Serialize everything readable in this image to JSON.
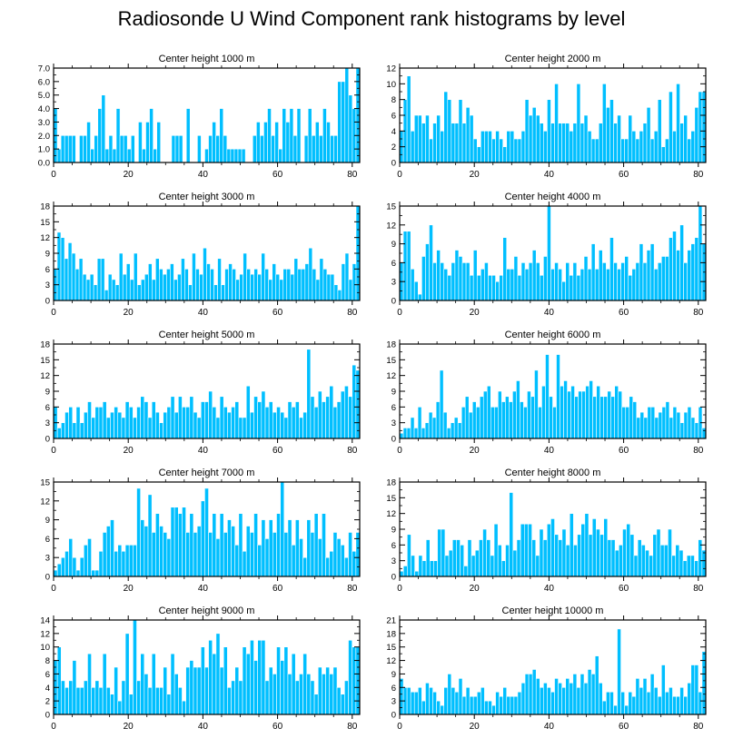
{
  "page": {
    "title": "Radiosonde U Wind Component rank histograms by level",
    "bar_color": "#00BFFF",
    "bar_edge_color": "#ffffff"
  },
  "chart_data": [
    {
      "type": "bar",
      "title": "Center height 1000 m",
      "xlim": [
        0,
        82
      ],
      "ylim": [
        0,
        7
      ],
      "yticks": [
        0,
        1,
        2,
        3,
        4,
        5,
        6,
        7
      ],
      "ytick_labels": [
        "0.0",
        "1.0",
        "2.0",
        "3.0",
        "4.0",
        "5.0",
        "6.0",
        "7.0"
      ],
      "xticks": [
        0,
        20,
        40,
        60,
        80
      ],
      "values": [
        4,
        1,
        2,
        2,
        2,
        2,
        0,
        2,
        2,
        3,
        1,
        2,
        4,
        5,
        1,
        2,
        1,
        4,
        2,
        2,
        1,
        2,
        0,
        3,
        1,
        3,
        4,
        1,
        3,
        0,
        0,
        0,
        2,
        2,
        2,
        0,
        4,
        0,
        0,
        2,
        0,
        1,
        2,
        3,
        2,
        4,
        2,
        1,
        1,
        1,
        1,
        1,
        0,
        0,
        2,
        3,
        2,
        3,
        4,
        2,
        3,
        1,
        4,
        3,
        4,
        2,
        4,
        0,
        2,
        4,
        2,
        3,
        2,
        4,
        3,
        2,
        2,
        6,
        6,
        7,
        5,
        4,
        7
      ]
    },
    {
      "type": "bar",
      "title": "Center height 2000 m",
      "xlim": [
        0,
        82
      ],
      "ylim": [
        0,
        12
      ],
      "yticks": [
        0,
        2,
        4,
        6,
        8,
        10,
        12
      ],
      "ytick_labels": [
        "0",
        "2",
        "4",
        "6",
        "8",
        "10",
        "12"
      ],
      "xticks": [
        0,
        20,
        40,
        60,
        80
      ],
      "values": [
        4,
        8,
        11,
        4,
        6,
        6,
        5,
        6,
        3,
        5,
        6,
        4,
        9,
        8,
        5,
        5,
        8,
        5,
        7,
        6,
        3,
        2,
        4,
        4,
        4,
        3,
        4,
        3,
        2,
        4,
        4,
        3,
        3,
        4,
        8,
        6,
        7,
        6,
        5,
        4,
        8,
        5,
        10,
        5,
        5,
        5,
        4,
        5,
        10,
        5,
        6,
        4,
        3,
        3,
        5,
        10,
        7,
        8,
        5,
        6,
        3,
        3,
        6,
        4,
        3,
        4,
        5,
        7,
        3,
        4,
        8,
        2,
        3,
        9,
        4,
        10,
        5,
        6,
        3,
        4,
        7,
        9,
        9
      ]
    },
    {
      "type": "bar",
      "title": "Center height 3000 m",
      "xlim": [
        0,
        82
      ],
      "ylim": [
        0,
        18
      ],
      "yticks": [
        0,
        3,
        6,
        9,
        12,
        15,
        18
      ],
      "ytick_labels": [
        "0",
        "3",
        "6",
        "9",
        "12",
        "15",
        "18"
      ],
      "xticks": [
        0,
        20,
        40,
        60,
        80
      ],
      "values": [
        6,
        13,
        12,
        8,
        11,
        9,
        6,
        8,
        5,
        4,
        5,
        3,
        8,
        8,
        2,
        5,
        4,
        3,
        9,
        5,
        7,
        4,
        9,
        3,
        4,
        5,
        7,
        4,
        8,
        6,
        5,
        6,
        7,
        4,
        5,
        8,
        6,
        3,
        9,
        6,
        5,
        10,
        7,
        6,
        3,
        8,
        3,
        6,
        7,
        6,
        4,
        5,
        9,
        6,
        5,
        6,
        5,
        9,
        6,
        4,
        7,
        5,
        4,
        6,
        6,
        5,
        8,
        6,
        6,
        7,
        10,
        6,
        4,
        8,
        6,
        5,
        5,
        3,
        2,
        7,
        9,
        4,
        7,
        18
      ]
    },
    {
      "type": "bar",
      "title": "Center height 4000 m",
      "xlim": [
        0,
        82
      ],
      "ylim": [
        0,
        15
      ],
      "yticks": [
        0,
        3,
        6,
        9,
        12,
        15
      ],
      "ytick_labels": [
        "0",
        "3",
        "6",
        "9",
        "12",
        "15"
      ],
      "xticks": [
        0,
        20,
        40,
        60,
        80
      ],
      "values": [
        6,
        11,
        11,
        5,
        3,
        1,
        7,
        9,
        12,
        6,
        8,
        6,
        5,
        4,
        6,
        8,
        7,
        6,
        6,
        4,
        8,
        4,
        5,
        6,
        4,
        4,
        3,
        4,
        10,
        5,
        5,
        7,
        4,
        6,
        5,
        6,
        8,
        6,
        4,
        7,
        15,
        5,
        6,
        5,
        3,
        6,
        4,
        6,
        4,
        5,
        7,
        5,
        9,
        5,
        8,
        6,
        5,
        10,
        6,
        5,
        6,
        7,
        4,
        5,
        6,
        9,
        6,
        8,
        9,
        5,
        6,
        7,
        7,
        10,
        11,
        8,
        12,
        6,
        8,
        9,
        10,
        15,
        9
      ]
    },
    {
      "type": "bar",
      "title": "Center height 5000 m",
      "xlim": [
        0,
        82
      ],
      "ylim": [
        0,
        18
      ],
      "yticks": [
        0,
        3,
        6,
        9,
        12,
        15,
        18
      ],
      "ytick_labels": [
        "0",
        "3",
        "6",
        "9",
        "12",
        "15",
        "18"
      ],
      "xticks": [
        0,
        20,
        40,
        60,
        80
      ],
      "values": [
        6,
        2,
        3,
        5,
        6,
        3,
        6,
        3,
        5,
        7,
        4,
        6,
        6,
        7,
        4,
        5,
        6,
        5,
        4,
        7,
        6,
        4,
        6,
        8,
        7,
        4,
        7,
        5,
        3,
        5,
        6,
        8,
        5,
        8,
        6,
        6,
        8,
        5,
        4,
        7,
        7,
        9,
        6,
        4,
        8,
        6,
        5,
        6,
        7,
        4,
        4,
        10,
        5,
        8,
        7,
        9,
        6,
        7,
        5,
        6,
        5,
        4,
        7,
        6,
        7,
        4,
        5,
        17,
        8,
        6,
        9,
        7,
        8,
        10,
        6,
        7,
        9,
        10,
        8,
        14,
        13
      ]
    },
    {
      "type": "bar",
      "title": "Center height 6000 m",
      "xlim": [
        0,
        82
      ],
      "ylim": [
        0,
        18
      ],
      "yticks": [
        0,
        3,
        6,
        9,
        12,
        15,
        18
      ],
      "ytick_labels": [
        "0",
        "3",
        "6",
        "9",
        "12",
        "15",
        "18"
      ],
      "xticks": [
        0,
        20,
        40,
        60,
        80
      ],
      "values": [
        1,
        2,
        2,
        4,
        2,
        6,
        2,
        3,
        5,
        4,
        7,
        13,
        5,
        2,
        3,
        4,
        3,
        6,
        8,
        5,
        7,
        6,
        8,
        9,
        10,
        6,
        6,
        9,
        7,
        8,
        7,
        9,
        11,
        7,
        6,
        9,
        8,
        13,
        6,
        10,
        16,
        8,
        6,
        16,
        10,
        11,
        9,
        10,
        8,
        9,
        9,
        10,
        11,
        8,
        10,
        8,
        8,
        9,
        8,
        10,
        9,
        6,
        6,
        8,
        7,
        4,
        5,
        4,
        6,
        6,
        4,
        5,
        6,
        7,
        4,
        6,
        5,
        3,
        5,
        6,
        4,
        3,
        6,
        2
      ]
    },
    {
      "type": "bar",
      "title": "Center height 7000 m",
      "xlim": [
        0,
        82
      ],
      "ylim": [
        0,
        15
      ],
      "yticks": [
        0,
        3,
        6,
        9,
        12,
        15
      ],
      "ytick_labels": [
        "0",
        "3",
        "6",
        "9",
        "12",
        "15"
      ],
      "xticks": [
        0,
        20,
        40,
        60,
        80
      ],
      "values": [
        1,
        2,
        3,
        4,
        6,
        3,
        1,
        3,
        5,
        6,
        1,
        1,
        4,
        7,
        8,
        9,
        4,
        5,
        4,
        5,
        5,
        5,
        14,
        9,
        8,
        13,
        7,
        10,
        8,
        7,
        6,
        11,
        11,
        10,
        11,
        7,
        10,
        7,
        8,
        12,
        14,
        7,
        10,
        6,
        10,
        7,
        9,
        8,
        5,
        10,
        4,
        8,
        7,
        10,
        5,
        9,
        6,
        9,
        7,
        10,
        15,
        7,
        9,
        5,
        9,
        6,
        3,
        9,
        7,
        10,
        6,
        10,
        3,
        4,
        7,
        6,
        5,
        3,
        7,
        4,
        7
      ]
    },
    {
      "type": "bar",
      "title": "Center height 8000 m",
      "xlim": [
        0,
        82
      ],
      "ylim": [
        0,
        18
      ],
      "yticks": [
        0,
        3,
        6,
        9,
        12,
        15,
        18
      ],
      "ytick_labels": [
        "0",
        "3",
        "6",
        "9",
        "12",
        "15",
        "18"
      ],
      "xticks": [
        0,
        20,
        40,
        60,
        80
      ],
      "values": [
        1,
        2,
        8,
        4,
        1,
        4,
        3,
        7,
        3,
        3,
        9,
        9,
        4,
        5,
        7,
        7,
        6,
        2,
        7,
        4,
        5,
        7,
        9,
        7,
        4,
        10,
        6,
        3,
        6,
        16,
        5,
        7,
        10,
        10,
        10,
        7,
        4,
        9,
        7,
        10,
        11,
        8,
        7,
        9,
        6,
        12,
        6,
        8,
        10,
        12,
        8,
        11,
        9,
        8,
        11,
        7,
        7,
        5,
        6,
        9,
        10,
        8,
        4,
        7,
        6,
        5,
        4,
        8,
        9,
        6,
        6,
        9,
        4,
        6,
        5,
        3,
        4,
        4,
        3,
        7,
        5
      ]
    },
    {
      "type": "bar",
      "title": "Center height 9000 m",
      "xlim": [
        0,
        82
      ],
      "ylim": [
        0,
        14
      ],
      "yticks": [
        0,
        2,
        4,
        6,
        8,
        10,
        12,
        14
      ],
      "ytick_labels": [
        "0",
        "2",
        "4",
        "6",
        "8",
        "10",
        "12",
        "14"
      ],
      "xticks": [
        0,
        20,
        40,
        60,
        80
      ],
      "values": [
        8,
        10,
        5,
        4,
        5,
        8,
        4,
        4,
        5,
        9,
        4,
        5,
        4,
        9,
        4,
        3,
        7,
        2,
        5,
        12,
        3,
        14,
        5,
        9,
        6,
        4,
        9,
        4,
        4,
        7,
        3,
        9,
        6,
        4,
        2,
        7,
        8,
        7,
        7,
        10,
        7,
        11,
        9,
        12,
        7,
        10,
        4,
        5,
        7,
        5,
        10,
        9,
        11,
        8,
        11,
        11,
        5,
        7,
        6,
        10,
        8,
        10,
        6,
        9,
        5,
        6,
        9,
        6,
        5,
        3,
        7,
        6,
        7,
        6,
        7,
        4,
        3,
        5,
        11,
        10,
        10
      ]
    },
    {
      "type": "bar",
      "title": "Center height 10000 m",
      "xlim": [
        0,
        82
      ],
      "ylim": [
        0,
        21
      ],
      "yticks": [
        0,
        3,
        6,
        9,
        12,
        15,
        18,
        21
      ],
      "ytick_labels": [
        "0",
        "3",
        "6",
        "9",
        "12",
        "15",
        "18",
        "21"
      ],
      "xticks": [
        0,
        20,
        40,
        60,
        80
      ],
      "values": [
        8,
        6,
        6,
        5,
        5,
        6,
        3,
        7,
        6,
        5,
        3,
        2,
        6,
        9,
        6,
        5,
        8,
        4,
        6,
        4,
        4,
        5,
        6,
        3,
        3,
        2,
        5,
        4,
        6,
        4,
        4,
        4,
        5,
        7,
        9,
        9,
        10,
        8,
        6,
        7,
        6,
        5,
        8,
        7,
        6,
        8,
        7,
        9,
        6,
        9,
        7,
        10,
        9,
        13,
        7,
        3,
        5,
        5,
        2,
        19,
        5,
        2,
        5,
        4,
        8,
        6,
        8,
        5,
        9,
        6,
        4,
        11,
        5,
        6,
        4,
        4,
        6,
        4,
        7,
        11,
        11,
        5,
        14
      ]
    }
  ]
}
